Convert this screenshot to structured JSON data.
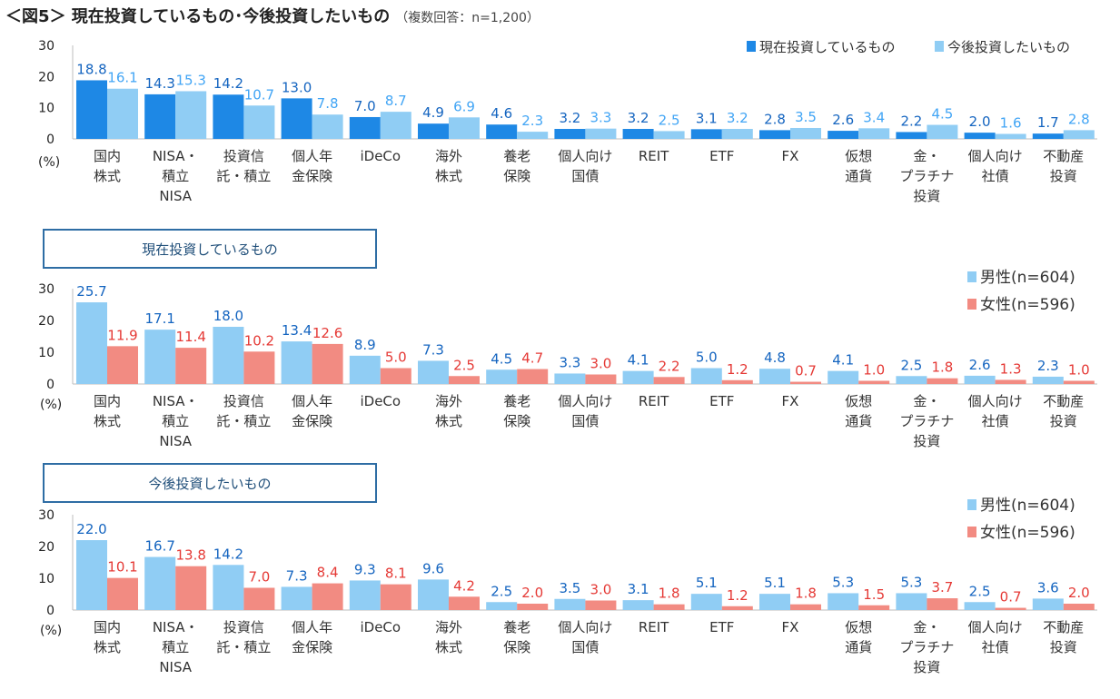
{
  "title": "＜図5＞ 現在投資しているもの･今後投資したいもの",
  "subtitle": "（複数回答：n=1,200）",
  "section_labels": [
    "現在投資しているもの",
    "今後投資したいもの"
  ],
  "colors": {
    "current": "#1e88e5",
    "future": "#90cdf4",
    "male": "#90cdf4",
    "female": "#f28b82",
    "label_dark": "#1565c0",
    "label_light": "#42a5f5",
    "label_female": "#e53935"
  },
  "chart_data": [
    {
      "type": "bar",
      "ylabel": "(%)",
      "ylim": [
        0,
        30
      ],
      "yticks": [
        0,
        10,
        20,
        30
      ],
      "legend_position": "top-right",
      "categories": [
        "国内\n株式",
        "NISA・\n積立\nNISA",
        "投資信\n託・積立",
        "個人年\n金保険",
        "iDeCo",
        "海外\n株式",
        "養老\n保険",
        "個人向け\n国債",
        "REIT",
        "ETF",
        "FX",
        "仮想\n通貨",
        "金・\nプラチナ\n投資",
        "個人向け\n社債",
        "不動産\n投資"
      ],
      "series": [
        {
          "name": "現在投資しているもの",
          "values": [
            18.8,
            14.3,
            14.2,
            13.0,
            7.0,
            4.9,
            4.6,
            3.2,
            3.2,
            3.1,
            2.8,
            2.6,
            2.2,
            2.0,
            1.7
          ]
        },
        {
          "name": "今後投資したいもの",
          "values": [
            16.1,
            15.3,
            10.7,
            7.8,
            8.7,
            6.9,
            2.3,
            3.3,
            2.5,
            3.2,
            3.5,
            3.4,
            4.5,
            1.6,
            2.8
          ]
        }
      ]
    },
    {
      "type": "bar",
      "ylabel": "(%)",
      "ylim": [
        0,
        30
      ],
      "yticks": [
        0,
        10,
        20,
        30
      ],
      "legend_position": "right",
      "categories": [
        "国内\n株式",
        "NISA・\n積立\nNISA",
        "投資信\n託・積立",
        "個人年\n金保険",
        "iDeCo",
        "海外\n株式",
        "養老\n保険",
        "個人向け\n国債",
        "REIT",
        "ETF",
        "FX",
        "仮想\n通貨",
        "金・\nプラチナ\n投資",
        "個人向け\n社債",
        "不動産\n投資"
      ],
      "series": [
        {
          "name": "男性(n=604)",
          "values": [
            25.7,
            17.1,
            18.0,
            13.4,
            8.9,
            7.3,
            4.5,
            3.3,
            4.1,
            5.0,
            4.8,
            4.1,
            2.5,
            2.6,
            2.3
          ]
        },
        {
          "name": "女性(n=596)",
          "values": [
            11.9,
            11.4,
            10.2,
            12.6,
            5.0,
            2.5,
            4.7,
            3.0,
            2.2,
            1.2,
            0.7,
            1.0,
            1.8,
            1.3,
            1.0
          ]
        }
      ]
    },
    {
      "type": "bar",
      "ylabel": "(%)",
      "ylim": [
        0,
        30
      ],
      "yticks": [
        0,
        10,
        20,
        30
      ],
      "legend_position": "right",
      "categories": [
        "国内\n株式",
        "NISA・\n積立\nNISA",
        "投資信\n託・積立",
        "個人年\n金保険",
        "iDeCo",
        "海外\n株式",
        "養老\n保険",
        "個人向け\n国債",
        "REIT",
        "ETF",
        "FX",
        "仮想\n通貨",
        "金・\nプラチナ\n投資",
        "個人向け\n社債",
        "不動産\n投資"
      ],
      "series": [
        {
          "name": "男性(n=604)",
          "values": [
            22.0,
            16.7,
            14.2,
            7.3,
            9.3,
            9.6,
            2.5,
            3.5,
            3.1,
            5.1,
            5.1,
            5.3,
            5.3,
            2.5,
            3.6
          ]
        },
        {
          "name": "女性(n=596)",
          "values": [
            10.1,
            13.8,
            7.0,
            8.4,
            8.1,
            4.2,
            2.0,
            3.0,
            1.8,
            1.2,
            1.8,
            1.5,
            3.7,
            0.7,
            2.0
          ]
        }
      ]
    }
  ]
}
